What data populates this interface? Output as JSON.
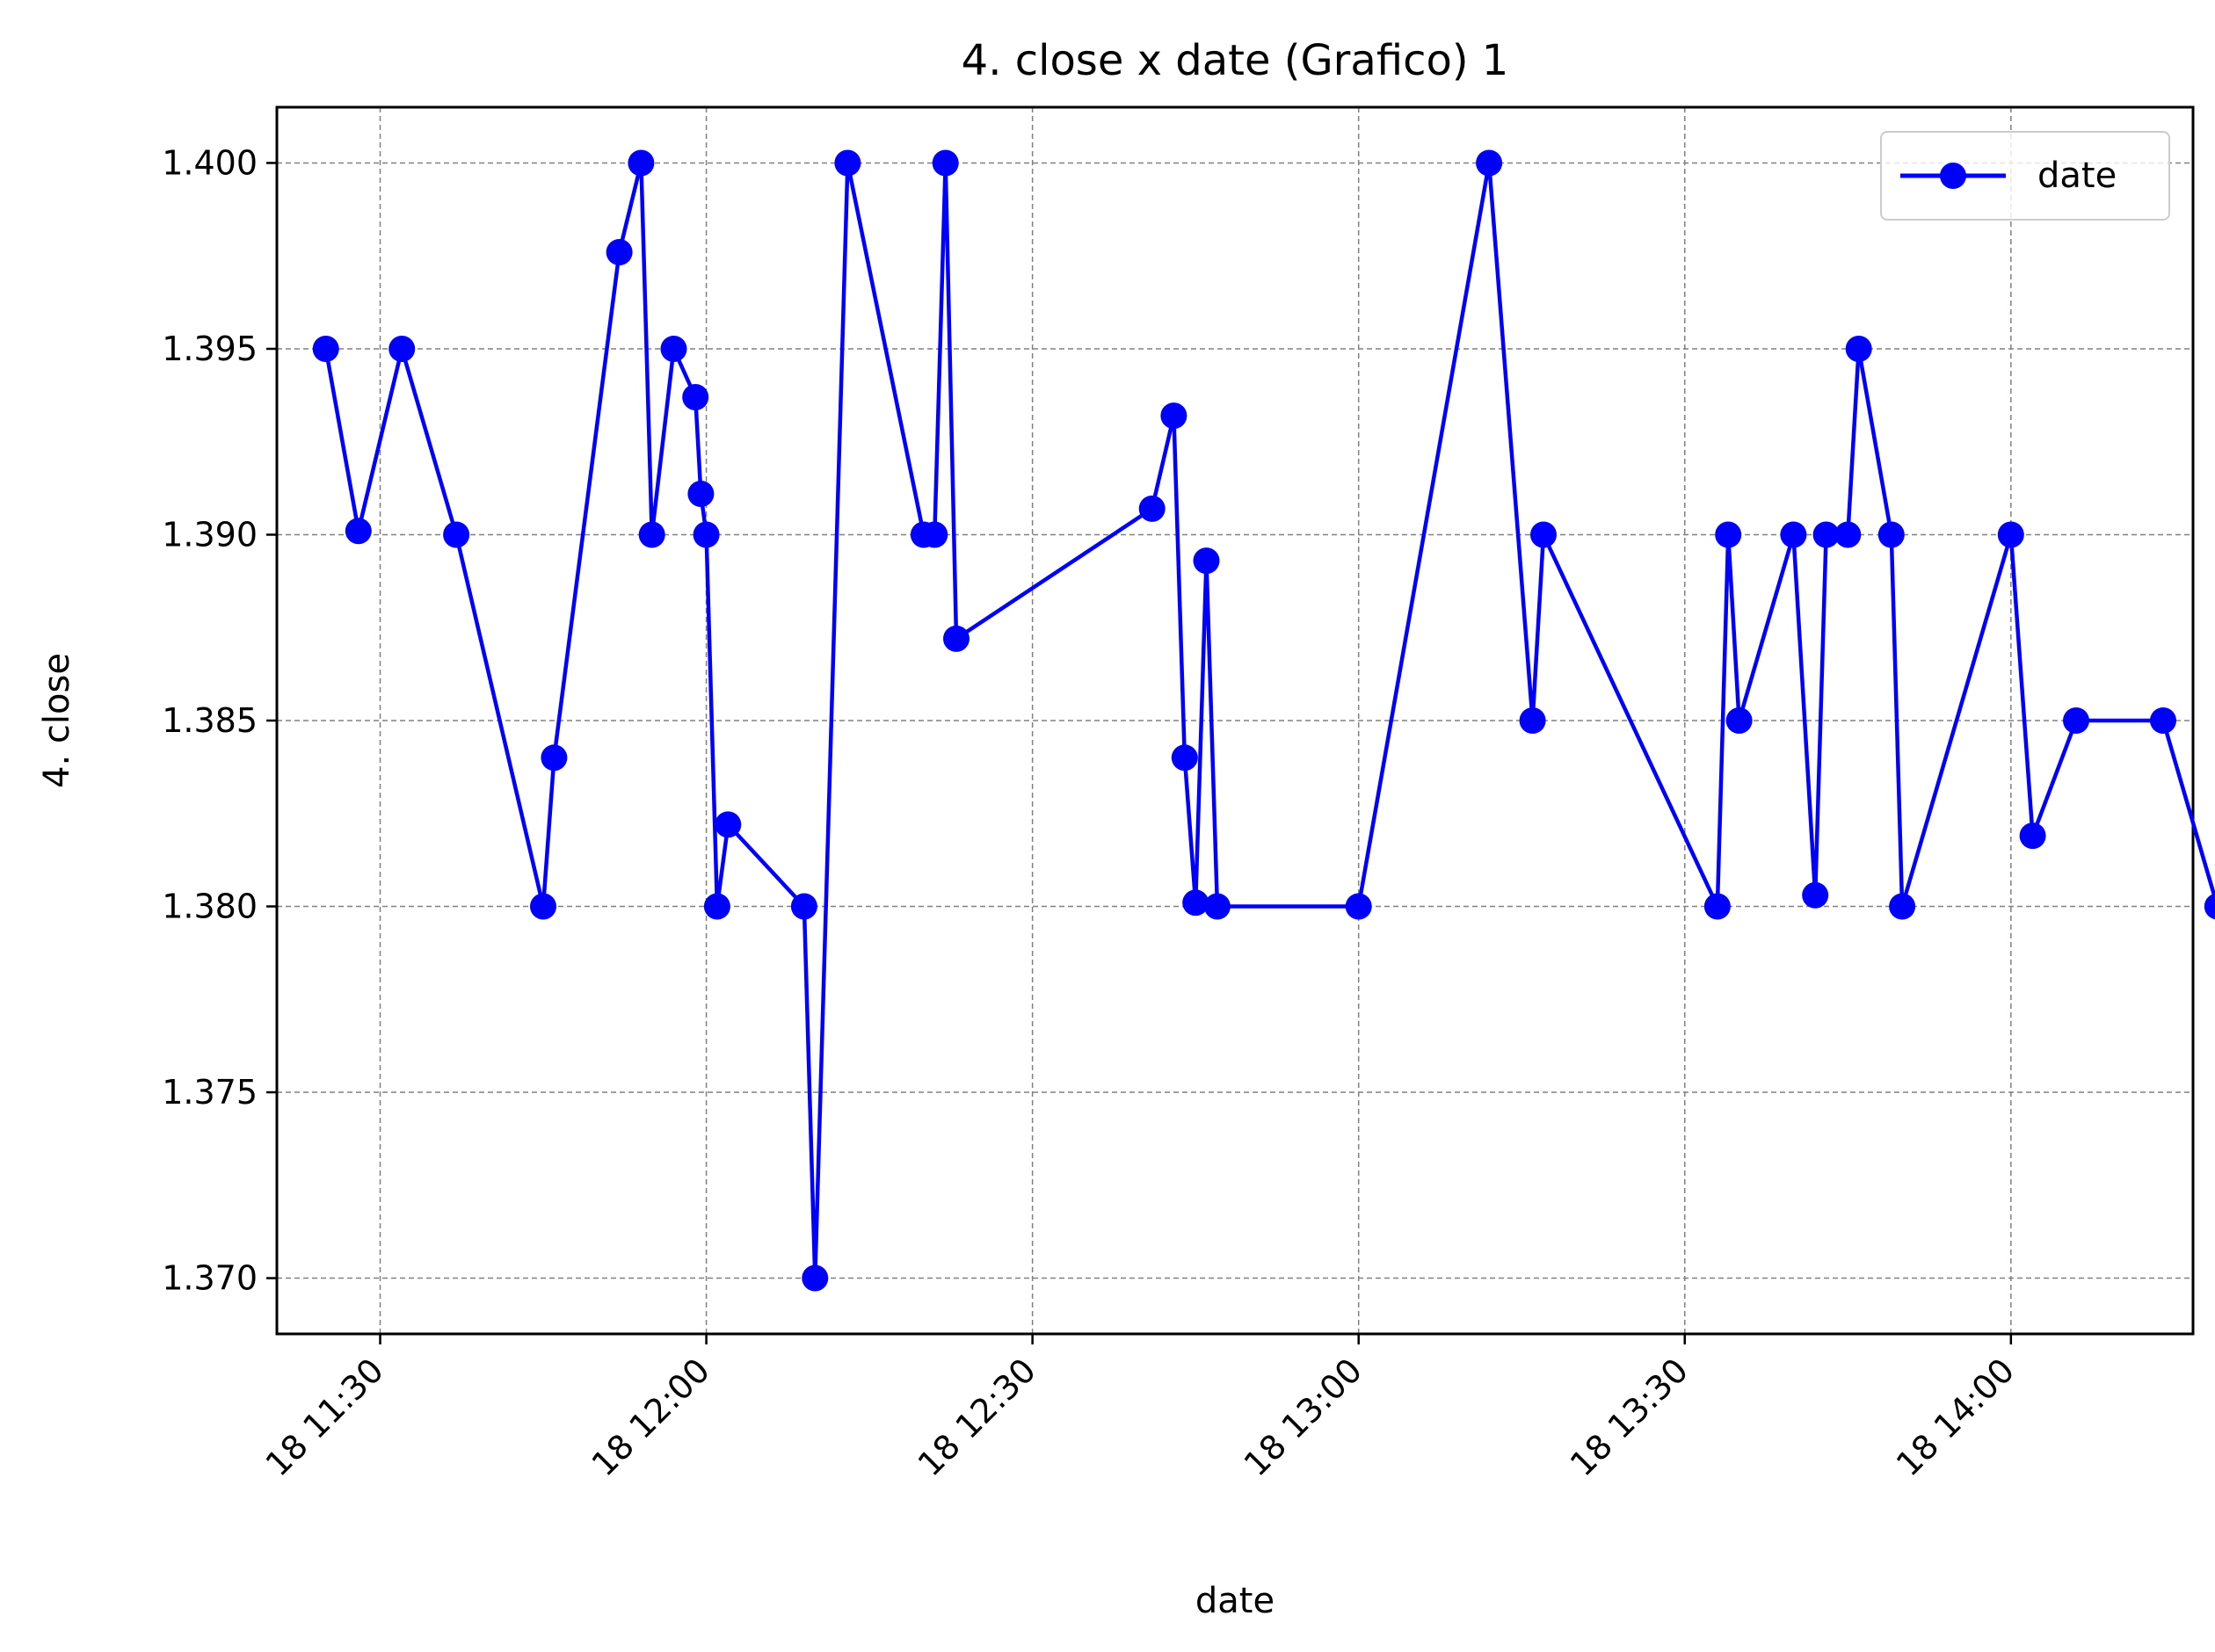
{
  "chart_data": {
    "type": "line",
    "title": "4. close x date (Grafico) 1",
    "xlabel": "date",
    "ylabel": "4. close",
    "x_tick_labels": [
      "18 11:30",
      "18 12:00",
      "18 12:30",
      "18 13:00",
      "18 13:30",
      "18 14:00"
    ],
    "x_tick_times": [
      "11:30",
      "12:00",
      "12:30",
      "13:00",
      "13:30",
      "14:00"
    ],
    "y_tick_labels": [
      "1.370",
      "1.375",
      "1.380",
      "1.385",
      "1.390",
      "1.395",
      "1.400"
    ],
    "y_ticks": [
      1.37,
      1.375,
      1.38,
      1.385,
      1.39,
      1.395,
      1.4
    ],
    "xlim": [
      "11:20:30",
      "14:16:45"
    ],
    "ylim": [
      1.3685,
      1.4015
    ],
    "grid": true,
    "legend": "top-right",
    "series": [
      {
        "name": "date",
        "color": "#0000ff",
        "marker": "circle",
        "x": [
          "11:25",
          "11:28",
          "11:32",
          "11:37",
          "11:45",
          "11:46",
          "11:52",
          "11:54",
          "11:55",
          "11:57",
          "11:59",
          "11:59:30",
          "12:00",
          "12:01",
          "12:02",
          "12:09",
          "12:10",
          "12:13",
          "12:20",
          "12:21",
          "12:22",
          "12:23",
          "12:41",
          "12:43",
          "12:44",
          "12:45",
          "12:46",
          "12:47",
          "13:00",
          "13:12",
          "13:16",
          "13:17",
          "13:33",
          "13:34",
          "13:35",
          "13:40",
          "13:42",
          "13:43",
          "13:45",
          "13:46",
          "13:49",
          "13:50",
          "14:00",
          "14:02",
          "14:06",
          "14:14",
          "14:19"
        ],
        "y": [
          1.395,
          1.3901,
          1.395,
          1.39,
          1.38,
          1.384,
          1.3976,
          1.4,
          1.39,
          1.395,
          1.3937,
          1.3911,
          1.39,
          1.38,
          1.3822,
          1.38,
          1.37,
          1.4,
          1.39,
          1.39,
          1.4,
          1.3872,
          1.3907,
          1.3932,
          1.384,
          1.3801,
          1.3893,
          1.38,
          1.38,
          1.4,
          1.385,
          1.39,
          1.38,
          1.39,
          1.385,
          1.39,
          1.3803,
          1.39,
          1.39,
          1.395,
          1.39,
          1.38,
          1.39,
          1.3819,
          1.385,
          1.385,
          1.38
        ]
      }
    ]
  }
}
